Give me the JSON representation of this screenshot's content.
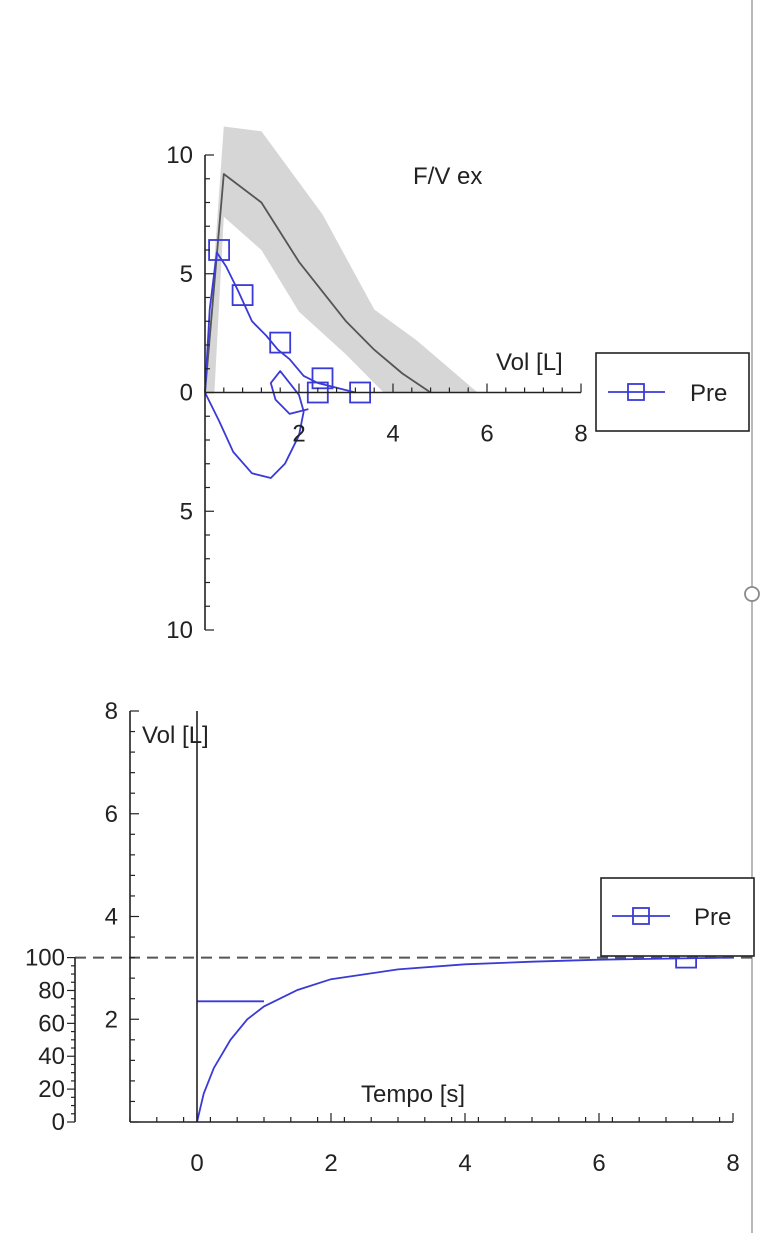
{
  "chart_data": [
    {
      "type": "line",
      "title": "F/V ex",
      "xlabel": "Vol [L]",
      "ylabel": "",
      "xlim": [
        0,
        8
      ],
      "ylim": [
        -10,
        10
      ],
      "x_ticks": [
        {
          "v": 2,
          "label": "2"
        },
        {
          "v": 4,
          "label": "4"
        },
        {
          "v": 6,
          "label": "6"
        },
        {
          "v": 8,
          "label": "8"
        }
      ],
      "y_ticks": [
        {
          "v": 10,
          "label": "10"
        },
        {
          "v": 5,
          "label": "5"
        },
        {
          "v": 0,
          "label": "0"
        },
        {
          "v": -5,
          "label": "5"
        },
        {
          "v": -10,
          "label": "10"
        }
      ],
      "grid": false,
      "legend": {
        "position": "right",
        "entries": [
          {
            "label": "Pre",
            "color": "#3a3ad6",
            "marker": "square"
          }
        ]
      },
      "predicted_band": {
        "color": "#d6d6d6",
        "upper": [
          [
            0.4,
            11.2
          ],
          [
            1.2,
            11.0
          ],
          [
            2.5,
            7.5
          ],
          [
            3.6,
            3.5
          ],
          [
            4.5,
            2.2
          ],
          [
            5.8,
            0
          ]
        ],
        "lower": [
          [
            0.4,
            7.4
          ],
          [
            1.2,
            6.0
          ],
          [
            2.0,
            3.4
          ],
          [
            3.0,
            1.6
          ],
          [
            3.8,
            0
          ]
        ]
      },
      "series": [
        {
          "color": "#555555",
          "x": [
            0,
            0.4,
            1.2,
            2.0,
            3.0,
            3.6,
            4.2,
            4.8
          ],
          "y": [
            0,
            9.2,
            8.0,
            5.5,
            3.0,
            1.8,
            0.8,
            0
          ]
        },
        {
          "name": "Pre",
          "color": "#3a3ad6",
          "x": [
            0,
            0.1,
            0.25,
            0.45,
            0.7,
            1.0,
            1.3,
            1.55,
            1.8,
            2.1,
            2.4,
            2.8,
            3.2
          ],
          "y": [
            0,
            3.5,
            5.9,
            5.3,
            4.3,
            3.0,
            2.4,
            1.8,
            1.4,
            0.7,
            0.4,
            0.2,
            0
          ],
          "markers_x": [
            0.3,
            0.8,
            1.6,
            2.4,
            2.5,
            3.3
          ],
          "markers_y": [
            6.0,
            4.1,
            2.1,
            0,
            0.6,
            0
          ]
        },
        {
          "color": "#3a3ad6",
          "x": [
            0,
            0.3,
            0.6,
            1.0,
            1.4,
            1.7,
            2.0,
            2.1,
            2.0,
            1.6,
            1.4,
            1.5,
            1.8,
            2.2
          ],
          "y": [
            0,
            -1.2,
            -2.5,
            -3.4,
            -3.6,
            -3.0,
            -1.8,
            -0.8,
            -0.1,
            0.9,
            0.4,
            -0.3,
            -0.9,
            -0.7
          ]
        }
      ]
    },
    {
      "type": "line",
      "title": "",
      "xlabel": "Tempo [s]",
      "ylabel": "Vol [L]",
      "xlim": [
        -1,
        8
      ],
      "ylim": [
        0,
        8
      ],
      "x_ticks": [
        {
          "v": 0,
          "label": "0"
        },
        {
          "v": 2,
          "label": "2"
        },
        {
          "v": 4,
          "label": "4"
        },
        {
          "v": 6,
          "label": "6"
        },
        {
          "v": 8,
          "label": "8"
        }
      ],
      "y_ticks": [
        {
          "v": 8,
          "label": "8"
        },
        {
          "v": 6,
          "label": "6"
        },
        {
          "v": 4,
          "label": "4"
        },
        {
          "v": 2,
          "label": "2"
        },
        {
          "v": 0,
          "label": "0"
        }
      ],
      "secondary_y_ticks": [
        {
          "v": 100,
          "label": "100"
        },
        {
          "v": 80,
          "label": "80"
        },
        {
          "v": 60,
          "label": "60"
        },
        {
          "v": 40,
          "label": "40"
        },
        {
          "v": 20,
          "label": "20"
        },
        {
          "v": 0,
          "label": "0"
        }
      ],
      "secondary_ylim": [
        0,
        100
      ],
      "grid": false,
      "reference_line": {
        "y": 3.2,
        "style": "dashed",
        "color": "#555555"
      },
      "legend": {
        "position": "right",
        "entries": [
          {
            "label": "Pre",
            "color": "#3a3ad6",
            "marker": "square"
          }
        ]
      },
      "series": [
        {
          "name": "Pre",
          "color": "#3a3ad6",
          "x": [
            0,
            0.1,
            0.25,
            0.5,
            0.75,
            1.0,
            1.5,
            2.0,
            3.0,
            4.0,
            5.0,
            6.0,
            7.0,
            8.0
          ],
          "y": [
            0,
            0.55,
            1.05,
            1.6,
            2.0,
            2.25,
            2.57,
            2.78,
            2.97,
            3.07,
            3.12,
            3.16,
            3.18,
            3.2
          ],
          "markers_x": [
            7.3
          ],
          "markers_y": [
            3.2
          ]
        },
        {
          "color": "#3a3ad6",
          "x": [
            0,
            1.0
          ],
          "y": [
            2.35,
            2.35
          ]
        }
      ]
    }
  ]
}
